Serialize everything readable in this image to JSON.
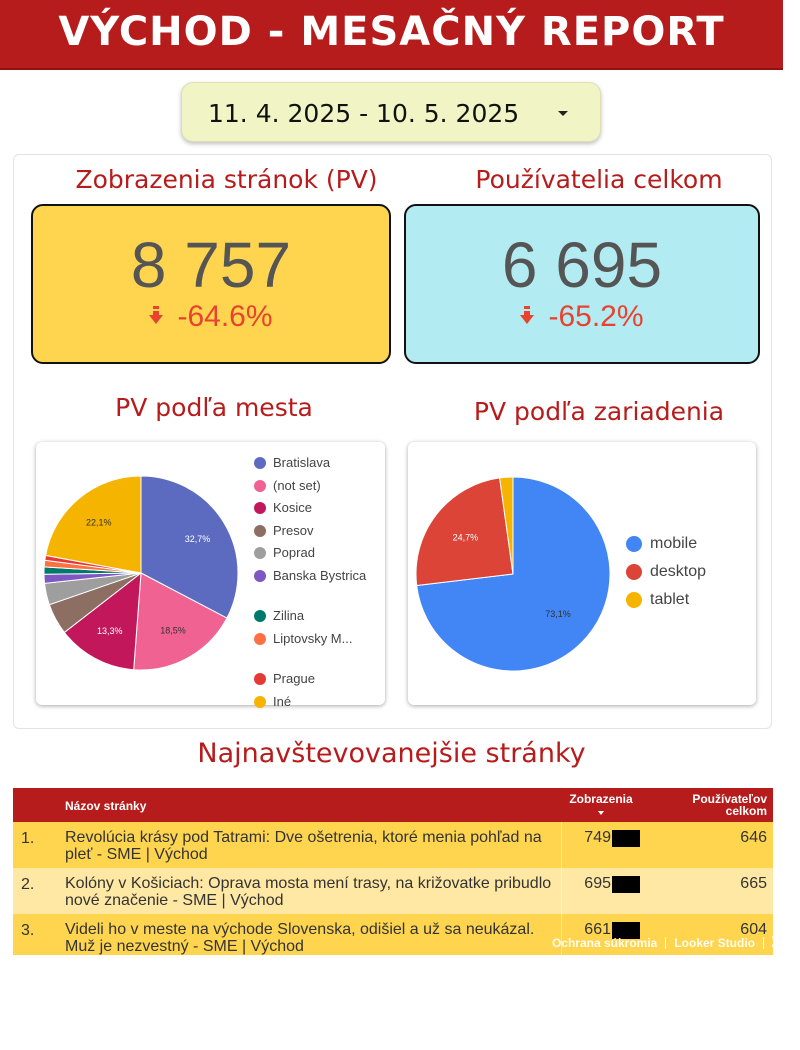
{
  "header": {
    "title": "VÝCHOD - MESAČNÝ REPORT"
  },
  "date_range": {
    "value": "11. 4. 2025 - 10. 5. 2025"
  },
  "kpis": [
    {
      "title": "Zobrazenia stránok (PV)",
      "value": "8 757",
      "delta": "-64.6%",
      "bg": "#ffd54f"
    },
    {
      "title": "Používatelia celkom",
      "value": "6 695",
      "delta": "-65.2%",
      "bg": "#b2ebf2"
    }
  ],
  "colors": {
    "brand": "#b71c1c",
    "negative": "#e8432e"
  },
  "icons": {
    "delta": "arrow-down-icon",
    "fullscreen": "fullscreen-icon",
    "sort": "sort-desc-icon"
  },
  "chart_data": [
    {
      "type": "pie",
      "title": "PV podľa mesta",
      "categories": [
        "Bratislava",
        "(not set)",
        "Kosice",
        "Presov",
        "Poprad",
        "Banska Bystrica",
        "Zilina",
        "Liptovsky M...",
        "Prague",
        "Iné"
      ],
      "values": [
        32.7,
        18.5,
        13.3,
        5.2,
        3.6,
        1.5,
        1.2,
        1.1,
        0.8,
        22.1
      ],
      "colors": [
        "#5c6bc0",
        "#f06292",
        "#c2185b",
        "#8d6e63",
        "#9e9e9e",
        "#7e57c2",
        "#00796b",
        "#ff7043",
        "#e53935",
        "#f4b400"
      ],
      "labels": [
        "32,7%",
        "18,5%",
        "13,3%",
        "",
        "",
        "",
        "",
        "",
        "",
        "22,1%"
      ],
      "legend_position": "right"
    },
    {
      "type": "pie",
      "title": "PV podľa zariadenia",
      "categories": [
        "mobile",
        "desktop",
        "tablet"
      ],
      "values": [
        73.1,
        24.7,
        2.2
      ],
      "colors": [
        "#4285f4",
        "#db4437",
        "#f4b400"
      ],
      "labels": [
        "73,1%",
        "24,7%",
        ""
      ],
      "legend_position": "right"
    }
  ],
  "top_pages": {
    "title": "Najnavštevovanejšie stránky",
    "columns": [
      "Názov stránky",
      "Zobrazenia",
      "Používateľov celkom"
    ],
    "rows": [
      {
        "rank": "1.",
        "title": "Revolúcia krásy pod Tatrami: Dve ošetrenia, ktoré menia pohľad na pleť - SME | Východ",
        "views": "749",
        "users": "646",
        "bg": "#ffd54f"
      },
      {
        "rank": "2.",
        "title": "Kolóny v Košiciach: Oprava mosta mení trasy, na križovatke pribudlo nové značenie - SME | Východ",
        "views": "695",
        "users": "665",
        "bg": "#ffe8a3"
      },
      {
        "rank": "3.",
        "title": "Videli ho v meste na východe Slovenska, odišiel a už sa neukázal. Muž je nezvestný - SME | Východ",
        "views": "661",
        "users": "604",
        "bg": "#ffd54f"
      }
    ]
  },
  "footer": {
    "privacy": "Ochrana súkromia",
    "brand": "Looker Studio"
  }
}
